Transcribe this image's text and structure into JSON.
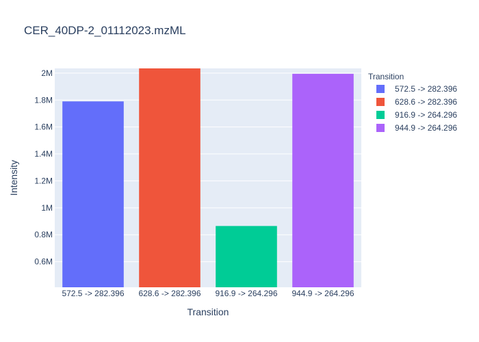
{
  "chart_data": {
    "type": "bar",
    "title": "CER_40DP-2_01112023.mzML",
    "xlabel": "Transition",
    "ylabel": "Intensity",
    "categories": [
      "572.5 -> 282.396",
      "628.6 -> 282.396",
      "916.9 -> 264.296",
      "944.9 -> 264.296"
    ],
    "values": [
      1790000,
      2035000,
      865000,
      1995000
    ],
    "colors": [
      "#636efa",
      "#ef553b",
      "#00cc96",
      "#ab63fa"
    ],
    "ylim": [
      410000,
      2035000
    ],
    "yticks": [
      600000,
      800000,
      1000000,
      1200000,
      1400000,
      1600000,
      1800000,
      2000000
    ],
    "ytick_labels": [
      "0.6M",
      "0.8M",
      "1M",
      "1.2M",
      "1.4M",
      "1.6M",
      "1.8M",
      "2M"
    ],
    "legend": {
      "title": "Transition",
      "position": "right",
      "entries": [
        "572.5 -> 282.396",
        "628.6 -> 282.396",
        "916.9 -> 264.296",
        "944.9 -> 264.296"
      ]
    },
    "plot_bgcolor": "#e5ecf6",
    "grid": true
  }
}
